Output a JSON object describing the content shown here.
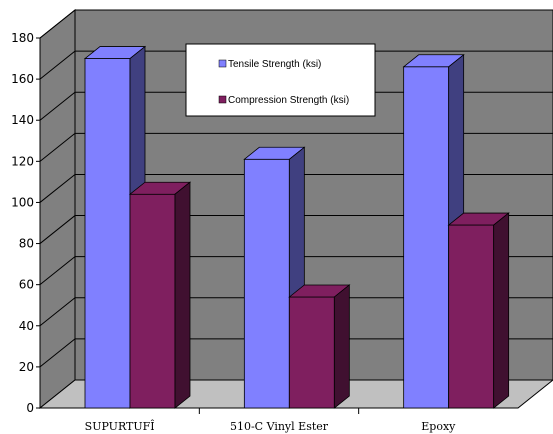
{
  "chart_data": {
    "type": "bar",
    "categories": [
      "SUPURTUFÎ",
      "510-C Vinyl Ester",
      "Epoxy"
    ],
    "series": [
      {
        "name": "Tensile Strength (ksi)",
        "values": [
          170,
          121,
          166
        ],
        "color": "#8080ff"
      },
      {
        "name": "Compression Strength (ksi)",
        "values": [
          104,
          54,
          89
        ],
        "color": "#7f1f5f"
      }
    ],
    "ylim": [
      0,
      180
    ],
    "yticks": [
      0,
      20,
      40,
      60,
      80,
      100,
      120,
      140,
      160,
      180
    ],
    "grid": true,
    "legend_position": "top-center",
    "style": "3d-clustered-column",
    "wall_color": "#808080",
    "floor_color": "#c0c0c0"
  }
}
